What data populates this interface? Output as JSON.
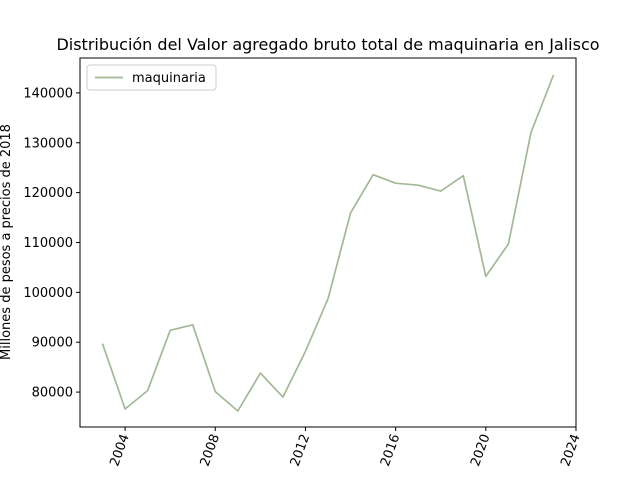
{
  "chart_data": {
    "type": "line",
    "title": "Distribución del Valor agregado bruto total de maquinaria en Jalisco",
    "xlabel": "",
    "ylabel": "Millones de pesos a precios de 2018",
    "xlim": [
      2002,
      2024
    ],
    "ylim": [
      73000,
      147000
    ],
    "x_ticks": [
      2004,
      2008,
      2012,
      2016,
      2020,
      2024
    ],
    "x_tick_labels": [
      "2004",
      "2008",
      "2012",
      "2016",
      "2020",
      "2024"
    ],
    "y_ticks": [
      80000,
      90000,
      100000,
      110000,
      120000,
      130000,
      140000
    ],
    "y_tick_labels": [
      "80000",
      "90000",
      "100000",
      "110000",
      "120000",
      "130000",
      "140000"
    ],
    "grid": false,
    "legend_position": "top-left",
    "series": [
      {
        "name": "maquinaria",
        "color": "#a3b996",
        "x": [
          2003,
          2004,
          2005,
          2006,
          2007,
          2008,
          2009,
          2010,
          2011,
          2012,
          2013,
          2014,
          2015,
          2016,
          2017,
          2018,
          2019,
          2020,
          2021,
          2022,
          2023
        ],
        "y": [
          89700,
          76600,
          80300,
          92400,
          93500,
          80100,
          76200,
          83800,
          79000,
          88200,
          98700,
          115900,
          123600,
          121900,
          121500,
          120300,
          123400,
          103200,
          109700,
          132000,
          143600
        ]
      }
    ]
  }
}
